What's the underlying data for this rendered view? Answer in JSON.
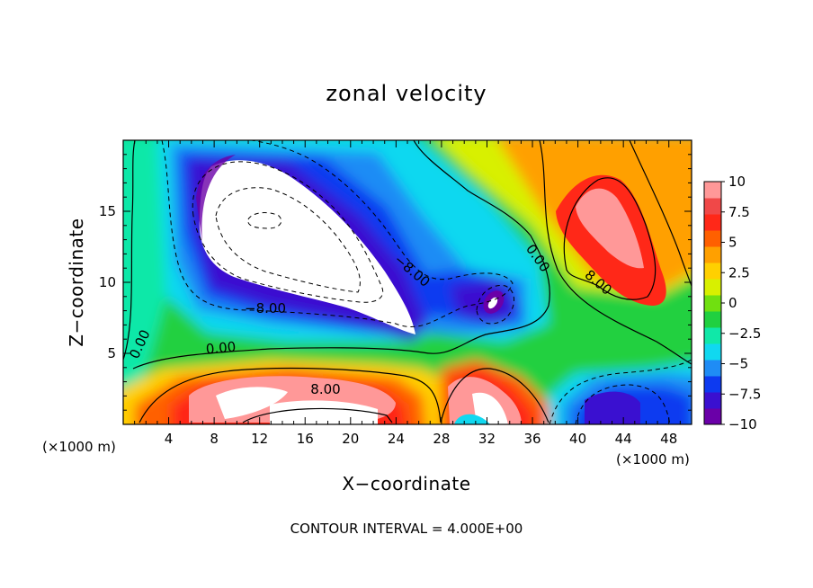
{
  "chart_data": {
    "type": "heatmap",
    "title": "zonal velocity",
    "xlabel": "X−coordinate",
    "ylabel": "Z−coordinate",
    "x_unit_label": "(×1000 m)",
    "x_unit_label_right": "(×1000 m)",
    "xlim": [
      0,
      50
    ],
    "ylim": [
      0,
      20
    ],
    "x_ticks": [
      "4",
      "8",
      "12",
      "16",
      "20",
      "24",
      "28",
      "32",
      "36",
      "40",
      "44",
      "48"
    ],
    "y_ticks": [
      "5",
      "10",
      "15"
    ],
    "colorbar": {
      "range": [
        -10,
        10
      ],
      "labels": [
        "10",
        "7.5",
        "5",
        "2.5",
        "0",
        "−2.5",
        "−5",
        "−7.5",
        "−10"
      ],
      "colors": [
        "#6a00a8",
        "#3a10d0",
        "#0d3af0",
        "#1f8cf5",
        "#10d8f0",
        "#10e8a8",
        "#20d040",
        "#70e010",
        "#d8f000",
        "#ffd000",
        "#ffa000",
        "#ff6000",
        "#ff2818",
        "#f04848",
        "#ff9898"
      ]
    },
    "contour_labels": [
      "0.00",
      "−8.00",
      "−8.00",
      "0.00",
      "8.00",
      "8.00",
      "0.00"
    ],
    "contour_interval": "CONTOUR INTERVAL = 4.000E+00",
    "features": [
      {
        "kind": "min",
        "x": 11,
        "y": 12.5,
        "value": -12
      },
      {
        "kind": "min",
        "x": 32,
        "y": 8.5,
        "value": -10
      },
      {
        "kind": "max",
        "x": 43,
        "y": 11.5,
        "value": 10
      },
      {
        "kind": "max",
        "x": 12,
        "y": 1.8,
        "value": 10
      },
      {
        "kind": "max",
        "x": 32,
        "y": 2,
        "value": 10
      },
      {
        "kind": "min",
        "x": 43,
        "y": 1.5,
        "value": -8
      }
    ]
  }
}
